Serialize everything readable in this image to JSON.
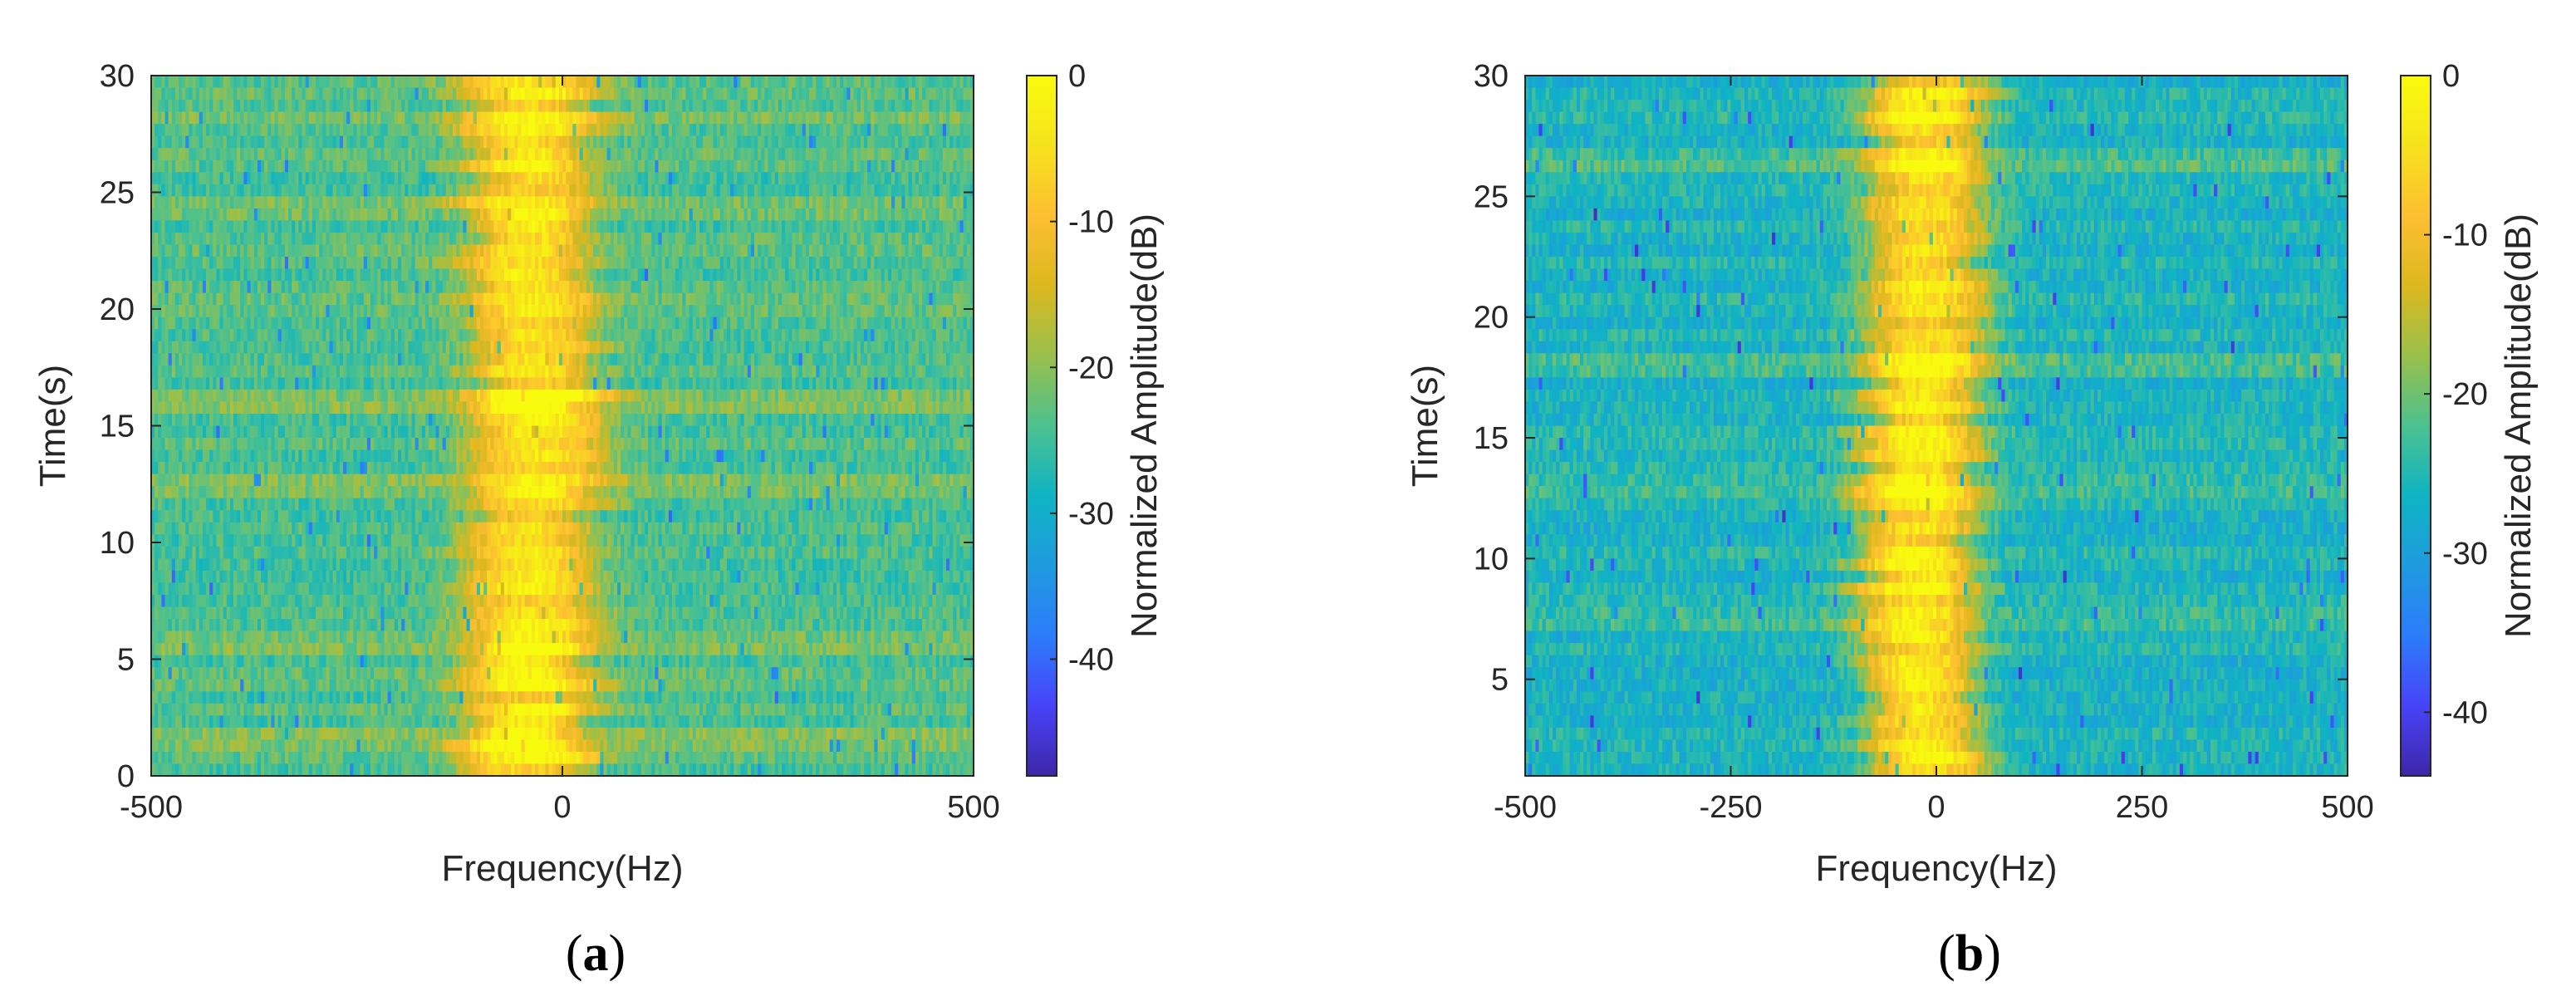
{
  "chart_data": [
    {
      "type": "heatmap",
      "panel_label": "a",
      "xlabel": "Frequency(Hz)",
      "ylabel": "Time(s)",
      "colorbar_label": "Normalized Amplitude(dB)",
      "xlim": [
        -500,
        500
      ],
      "ylim": [
        0,
        30
      ],
      "xticks": [
        -500,
        0,
        500
      ],
      "yticks": [
        0,
        5,
        10,
        15,
        20,
        25,
        30
      ],
      "clim": [
        -48,
        0
      ],
      "cticks": [
        0,
        -10,
        -20,
        -30,
        -40
      ],
      "colormap": "parula",
      "colormap_stops": [
        "#3e26a8",
        "#4743f8",
        "#2c7cfb",
        "#1e9bde",
        "#0fb4c3",
        "#4cc18f",
        "#9ac04b",
        "#dcb81e",
        "#fdbf32",
        "#f6e21c",
        "#f9fb0e"
      ],
      "background_level_db": -24,
      "peak_frequency_hz_by_time": [
        {
          "t": 0,
          "f": -45
        },
        {
          "t": 5,
          "f": -45
        },
        {
          "t": 10,
          "f": -35
        },
        {
          "t": 15,
          "f": -30
        },
        {
          "t": 20,
          "f": -40
        },
        {
          "t": 25,
          "f": -40
        },
        {
          "t": 30,
          "f": -40
        }
      ],
      "spread_hz": 55,
      "strong_rows_s": [
        1.5,
        5.8,
        12.5,
        16.2,
        24.5,
        28.2
      ]
    },
    {
      "type": "heatmap",
      "panel_label": "b",
      "xlabel": "Frequency(Hz)",
      "ylabel": "Time(s)",
      "colorbar_label": "Normalized Amplitude(dB)",
      "xlim": [
        -500,
        500
      ],
      "ylim": [
        1,
        30
      ],
      "xticks": [
        -500,
        -250,
        0,
        250,
        500
      ],
      "yticks": [
        5,
        10,
        15,
        20,
        25,
        30
      ],
      "clim": [
        -44,
        0
      ],
      "cticks": [
        0,
        -10,
        -20,
        -30,
        -40
      ],
      "colormap": "parula",
      "colormap_stops": [
        "#3e26a8",
        "#4743f8",
        "#2c7cfb",
        "#1e9bde",
        "#0fb4c3",
        "#4cc18f",
        "#9ac04b",
        "#dcb81e",
        "#fdbf32",
        "#f6e21c",
        "#f9fb0e"
      ],
      "background_level_db": -26,
      "peak_frequency_hz_by_time": [
        {
          "t": 1,
          "f": -10
        },
        {
          "t": 5,
          "f": -20
        },
        {
          "t": 10,
          "f": -25
        },
        {
          "t": 15,
          "f": -20
        },
        {
          "t": 20,
          "f": -15
        },
        {
          "t": 25,
          "f": -10
        },
        {
          "t": 30,
          "f": -10
        }
      ],
      "spread_hz": 50,
      "strong_rows_s": [
        26.3,
        18.2,
        7.5,
        13.0
      ]
    }
  ]
}
